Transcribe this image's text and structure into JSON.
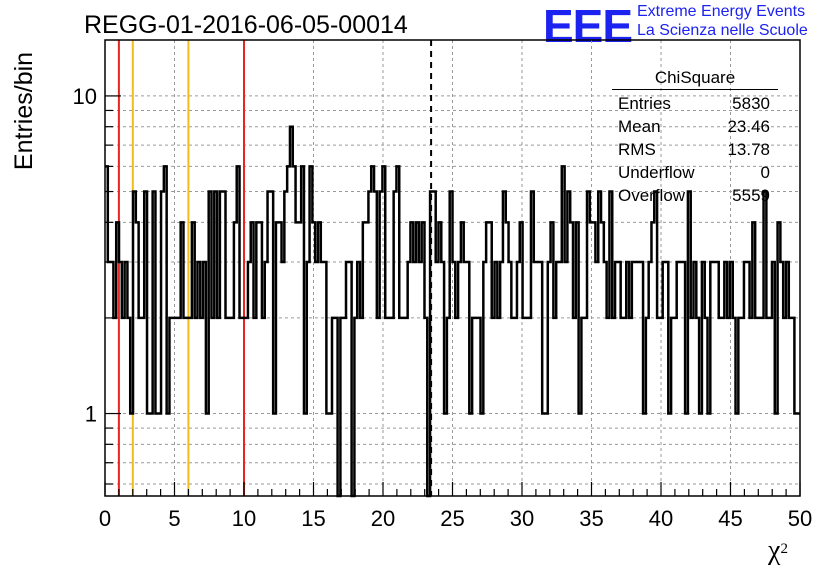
{
  "title": "REGG-01-2016-06-05-00014",
  "logo": {
    "mark": "EEE",
    "line1": "Extreme Energy Events",
    "line2": "La Scienza nelle Scuole",
    "color": "#1c22f0"
  },
  "stats": {
    "name": "ChiSquare",
    "rows": [
      {
        "label": "Entries",
        "value": "5830"
      },
      {
        "label": "Mean",
        "value": "23.46"
      },
      {
        "label": "RMS",
        "value": "13.78"
      },
      {
        "label": "Underflow",
        "value": "0"
      },
      {
        "label": "Overflow",
        "value": "5559"
      }
    ]
  },
  "chart_data": {
    "type": "histogram",
    "title": "REGG-01-2016-06-05-00014",
    "xlabel": "χ",
    "xlabel_sup": "2",
    "ylabel": "Entries/bin",
    "xlim": [
      0,
      50
    ],
    "ylim": [
      0.55,
      15
    ],
    "yscale": "log",
    "grid": true,
    "bin_width": 1,
    "x_ticks": [
      0,
      5,
      10,
      15,
      20,
      25,
      30,
      35,
      40,
      45,
      50
    ],
    "y_ticks": [
      1,
      10
    ],
    "values": [
      6,
      3,
      3,
      2,
      4,
      3,
      2,
      3,
      2,
      1,
      5,
      4,
      2,
      2,
      5,
      1,
      1,
      5,
      1,
      1,
      5,
      6,
      1,
      2,
      2,
      2,
      2,
      4,
      2,
      2,
      2,
      4,
      2,
      3,
      2,
      3,
      1,
      5,
      2,
      5,
      2,
      5,
      5,
      2,
      2,
      2,
      4,
      6,
      2,
      2,
      2,
      3,
      4,
      2,
      4,
      4,
      2,
      3,
      5,
      5,
      1,
      4,
      4,
      3,
      5,
      6,
      8,
      6,
      4,
      4,
      6,
      1,
      3,
      6,
      4,
      3,
      4,
      3,
      3,
      1,
      1,
      2,
      2,
      0,
      2,
      2,
      3,
      3,
      0,
      2,
      3,
      2,
      4,
      4,
      5,
      6,
      5,
      2,
      5,
      6,
      2,
      2,
      2,
      5,
      6,
      2,
      2,
      2,
      3,
      4,
      3,
      4,
      3,
      4,
      2,
      0,
      5,
      5,
      3,
      4,
      3,
      1,
      2,
      5,
      3,
      2,
      3,
      4,
      3,
      3,
      1,
      2,
      2,
      2,
      1,
      3,
      4,
      4,
      2,
      3,
      2,
      3,
      5,
      4,
      3,
      2,
      2,
      3,
      4,
      2,
      2,
      2,
      5,
      3,
      3,
      3,
      1,
      1,
      3,
      4,
      2,
      3,
      3,
      6,
      3,
      5,
      4,
      2,
      4,
      1,
      2,
      2,
      5,
      4,
      4,
      3,
      5,
      4,
      3,
      2,
      5,
      2,
      3,
      3,
      2,
      2,
      3,
      2,
      3,
      3,
      3,
      3,
      1,
      2,
      3,
      4,
      5,
      2,
      2,
      3,
      3,
      1,
      2,
      2,
      3,
      3,
      3,
      1,
      5,
      2,
      3,
      2,
      1,
      3,
      2,
      1,
      3,
      3,
      3,
      2,
      2,
      3,
      2,
      3,
      2,
      1,
      2,
      2,
      3,
      3,
      2,
      4,
      2,
      2,
      2,
      5,
      2,
      2,
      3,
      1,
      4,
      3,
      2,
      3,
      2,
      2,
      1,
      1
    ],
    "markers": [
      {
        "x": 1,
        "color": "#e8251f",
        "style": "solid"
      },
      {
        "x": 2,
        "color": "#f2bc1b",
        "style": "solid"
      },
      {
        "x": 6,
        "color": "#f2bc1b",
        "style": "solid"
      },
      {
        "x": 10,
        "color": "#e8251f",
        "style": "solid"
      },
      {
        "x": 23.46,
        "color": "#000000",
        "style": "dashed"
      }
    ]
  }
}
